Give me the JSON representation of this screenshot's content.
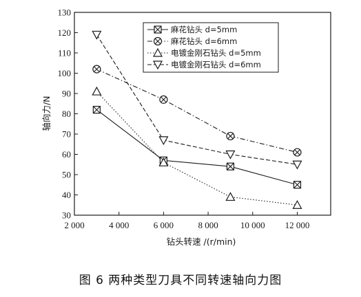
{
  "chart_data": {
    "type": "line",
    "xlabel": "钻头转速 /(r/min)",
    "ylabel": "轴向力/N",
    "x_ticks": [
      2000,
      4000,
      6000,
      8000,
      10000,
      12000
    ],
    "x_tick_labels": [
      "2 000",
      "4 000",
      "6 000",
      "8 000",
      "10 000",
      "12 000"
    ],
    "y_ticks": [
      30,
      40,
      50,
      60,
      70,
      80,
      90,
      100,
      110,
      120,
      130
    ],
    "x": [
      3000,
      6000,
      9000,
      12000
    ],
    "xlim": [
      2000,
      13500
    ],
    "ylim": [
      30,
      130
    ],
    "legend_position": "top-right",
    "series": [
      {
        "name": "麻花钻头 d=5mm",
        "marker": "box-x",
        "dash": "solid",
        "values": [
          82,
          57,
          54,
          45
        ]
      },
      {
        "name": "麻花钻头 d=6mm",
        "marker": "circle-x",
        "dash": "dashdot",
        "values": [
          102,
          87,
          69,
          61
        ]
      },
      {
        "name": "电镀金刚石钻头 d=5mm",
        "marker": "triangle-up",
        "dash": "dot",
        "values": [
          91,
          56,
          39,
          35
        ]
      },
      {
        "name": "电镀金刚石钻头 d=6mm",
        "marker": "triangle-down",
        "dash": "dash",
        "values": [
          119,
          67,
          60,
          55
        ]
      }
    ]
  },
  "caption": "图 6   两种类型刀具不同转速轴向力图"
}
